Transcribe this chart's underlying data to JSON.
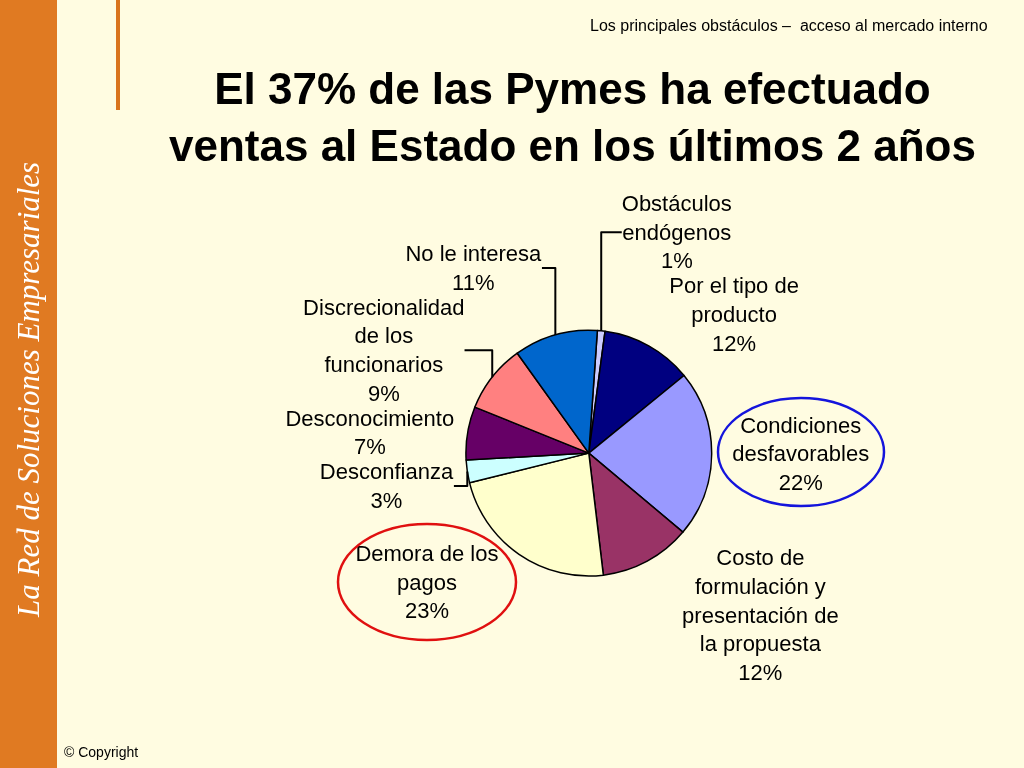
{
  "chart_data": {
    "type": "pie",
    "title": "El 37% de las Pymes ha efectuado ventas al Estado en los últimos 2 años",
    "subtitle": "Los principales obstáculos –  acceso al mercado interno",
    "categories": [
      "Obstáculos endógenos",
      "Por el tipo de producto",
      "Condiciones desfavorables",
      "Costo de formulación y presentación de la propuesta",
      "Demora de los pagos",
      "Desconfianza",
      "Desconocimiento",
      "Discrecionalidad de los funcionarios",
      "No le interesa"
    ],
    "values": [
      1,
      12,
      22,
      12,
      23,
      3,
      7,
      9,
      11
    ],
    "value_labels": [
      "1%",
      "12%",
      "22%",
      "12%",
      "23%",
      "3%",
      "7%",
      "9%",
      "11%"
    ],
    "colors": [
      "#ccccff",
      "#000080",
      "#9999ff",
      "#993366",
      "#ffffcc",
      "#ccffff",
      "#660066",
      "#ff8080",
      "#0066cc"
    ],
    "legend": false,
    "annotations": [
      "La Red de Soluciones Empresariales",
      "© Copyright"
    ]
  }
}
